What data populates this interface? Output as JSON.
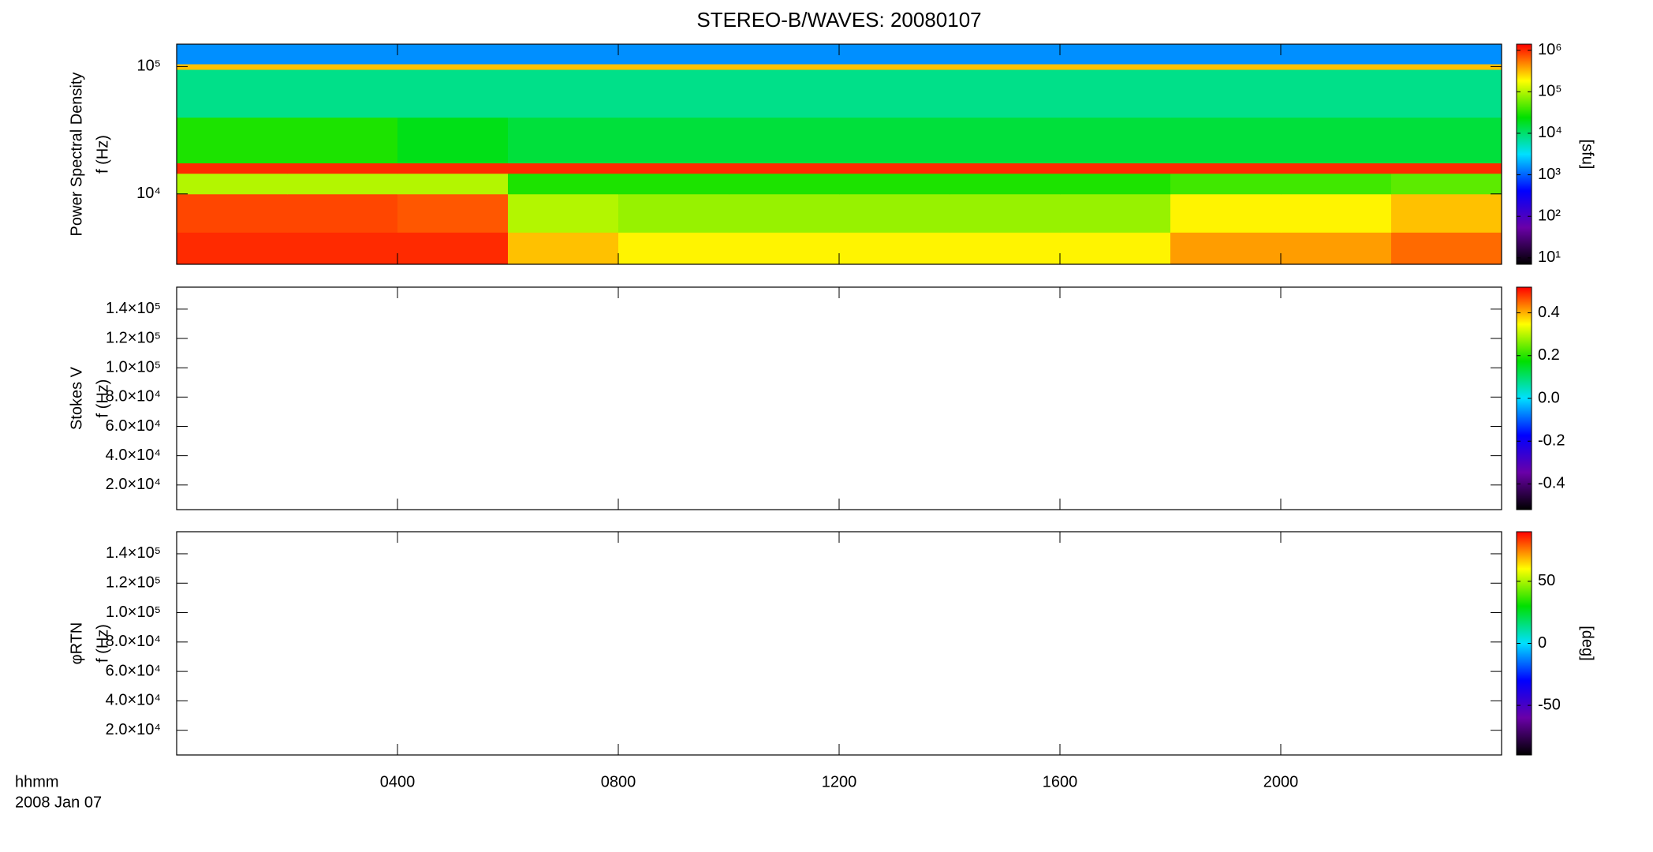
{
  "chart_data": [
    {
      "type": "spectrogram",
      "title": "STEREO-B/WAVES: 20080107",
      "ylabel": [
        "Power Spectral Density",
        "f (Hz)"
      ],
      "ylog": true,
      "ylim": [
        2800,
        150000
      ],
      "yticks": [
        {
          "value": 10000,
          "label": "10⁴"
        },
        {
          "value": 100000,
          "label": "10⁵"
        }
      ],
      "zlog": true,
      "zlim": [
        7,
        1400000
      ],
      "zlabel": "[sfu]",
      "zticks": [
        {
          "value": 10,
          "label": "10¹"
        },
        {
          "value": 100,
          "label": "10²"
        },
        {
          "value": 1000,
          "label": "10³"
        },
        {
          "value": 10000,
          "label": "10⁴"
        },
        {
          "value": 100000,
          "label": "10⁵"
        },
        {
          "value": 1000000,
          "label": "10⁶"
        }
      ],
      "colormap": [
        "#000000",
        "#6a00a8",
        "#0000ff",
        "#00e0ff",
        "#00e000",
        "#ffff00",
        "#ff0000"
      ],
      "xbins": [
        0,
        2,
        4,
        6,
        8,
        10,
        12,
        14,
        16,
        18,
        20,
        22,
        24
      ],
      "ybins": [
        2800,
        5000,
        10000,
        14500,
        17500,
        40000,
        95000,
        105000,
        150000
      ],
      "z": [
        [
          1000000,
          1000000,
          1000000,
          300000,
          200000,
          200000,
          200000,
          200000,
          200000,
          400000,
          400000,
          600000
        ],
        [
          800000,
          800000,
          700000,
          100000,
          80000,
          80000,
          80000,
          80000,
          80000,
          200000,
          200000,
          300000
        ],
        [
          100000,
          100000,
          100000,
          30000,
          30000,
          30000,
          30000,
          30000,
          30000,
          40000,
          40000,
          50000
        ],
        [
          1000000,
          1000000,
          1000000,
          1000000,
          1000000,
          1000000,
          1000000,
          1000000,
          1000000,
          1000000,
          1000000,
          1000000
        ],
        [
          30000,
          30000,
          20000,
          15000,
          15000,
          15000,
          15000,
          15000,
          15000,
          15000,
          15000,
          15000
        ],
        [
          8000,
          8000,
          8000,
          8000,
          8000,
          8000,
          8000,
          8000,
          8000,
          8000,
          8000,
          8000
        ],
        [
          300000,
          300000,
          300000,
          300000,
          300000,
          300000,
          300000,
          300000,
          300000,
          300000,
          300000,
          300000
        ],
        [
          1500,
          1500,
          1500,
          1500,
          1500,
          1500,
          1500,
          1500,
          1500,
          1500,
          1500,
          1500
        ]
      ]
    },
    {
      "type": "spectrogram",
      "ylabel": [
        "Stokes V",
        "f (Hz)"
      ],
      "ylim": [
        3200,
        155000
      ],
      "yticks": [
        {
          "value": 20000,
          "label": "2.0×10⁴"
        },
        {
          "value": 40000,
          "label": "4.0×10⁴"
        },
        {
          "value": 60000,
          "label": "6.0×10⁴"
        },
        {
          "value": 80000,
          "label": "8.0×10⁴"
        },
        {
          "value": 100000,
          "label": "1.0×10⁵"
        },
        {
          "value": 120000,
          "label": "1.2×10⁵"
        },
        {
          "value": 140000,
          "label": "1.4×10⁵"
        }
      ],
      "zlim": [
        -0.52,
        0.52
      ],
      "zticks": [
        -0.4,
        -0.2,
        {
          "value": 0,
          "label": "0.0"
        },
        0.2,
        0.4
      ],
      "colormap": [
        "#000000",
        "#6a00a8",
        "#0000ff",
        "#00e0ff",
        "#00e000",
        "#ffff00",
        "#ff0000"
      ]
    },
    {
      "type": "spectrogram",
      "ylabel": [
        "φRTN",
        "f (Hz)"
      ],
      "ylim": [
        3200,
        155000
      ],
      "yticks": [
        {
          "value": 20000,
          "label": "2.0×10⁴"
        },
        {
          "value": 40000,
          "label": "4.0×10⁴"
        },
        {
          "value": 60000,
          "label": "6.0×10⁴"
        },
        {
          "value": 80000,
          "label": "8.0×10⁴"
        },
        {
          "value": 100000,
          "label": "1.0×10⁵"
        },
        {
          "value": 120000,
          "label": "1.2×10⁵"
        },
        {
          "value": 140000,
          "label": "1.4×10⁵"
        }
      ],
      "zlim": [
        -90,
        90
      ],
      "zlabel": "[deg]",
      "zticks": [
        -50,
        0,
        50
      ],
      "colormap": [
        "#000000",
        "#6a00a8",
        "#0000ff",
        "#00e0ff",
        "#00e000",
        "#ffff00",
        "#ff0000"
      ],
      "xlim": [
        0,
        24
      ],
      "xticks": [
        {
          "value": 4,
          "label": "0400"
        },
        {
          "value": 8,
          "label": "0800"
        },
        {
          "value": 12,
          "label": "1200"
        },
        {
          "value": 16,
          "label": "1600"
        },
        {
          "value": 20,
          "label": "2000"
        }
      ],
      "xlabel": [
        "hhmm",
        "2008 Jan 07"
      ]
    }
  ]
}
